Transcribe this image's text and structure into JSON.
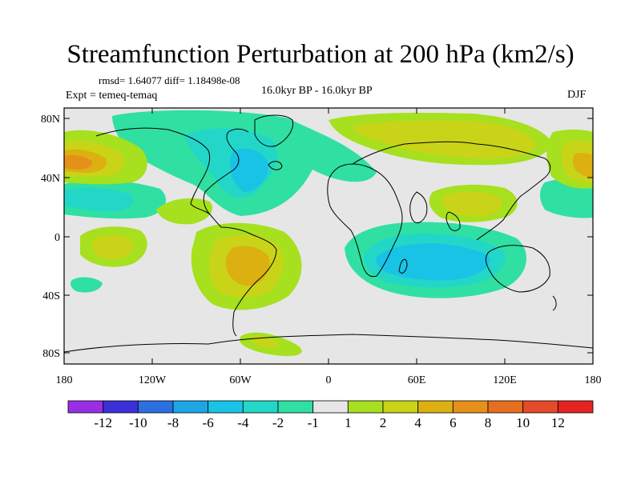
{
  "title": "Streamfunction Perturbation at 200 hPa (km2/s)",
  "stats": "rmsd= 1.64077 diff= 1.18498e-08",
  "experiment": "Expt = temeq-temaq",
  "period": "16.0kyr BP - 16.0kyr BP",
  "season": "DJF",
  "lat_labels": [
    "80N",
    "40N",
    "0",
    "40S",
    "80S"
  ],
  "lon_labels": [
    "180",
    "120W",
    "60W",
    "0",
    "60E",
    "120E",
    "180"
  ],
  "colorbar": {
    "colors": [
      "#9a2ee6",
      "#3b2fd8",
      "#2b6fe0",
      "#1ca6e6",
      "#18c3e6",
      "#22d7c8",
      "#2fe0a2",
      "#e6e6e6",
      "#a6e01f",
      "#c9d418",
      "#dcb010",
      "#e5901a",
      "#e66e1f",
      "#e64a2a",
      "#e62222"
    ],
    "labels": [
      "-12",
      "-10",
      "-8",
      "-6",
      "-4",
      "-2",
      "-1",
      "1",
      "2",
      "4",
      "6",
      "8",
      "10",
      "12"
    ]
  },
  "palette": {
    "neutral": "#e6e6e6",
    "neg1": "#2fe0a2",
    "neg2": "#22d7c8",
    "neg3": "#18c3e6",
    "pos1": "#a6e01f",
    "pos2": "#c9d418",
    "pos3": "#dcb010",
    "pos4": "#e5901a",
    "pos5": "#e66e1f"
  }
}
